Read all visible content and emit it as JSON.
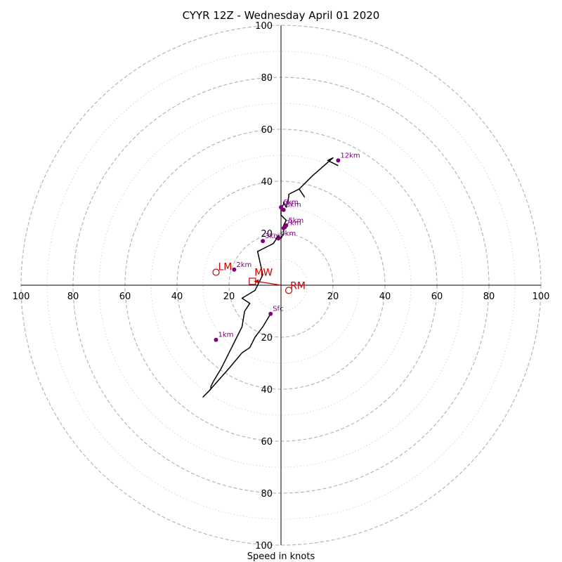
{
  "chart_data": {
    "type": "hodograph",
    "title": "CYYR 12Z - Wednesday April 01 2020",
    "xlabel": "Speed in knots",
    "units": "knots",
    "max_speed": 100,
    "rings": [
      10,
      20,
      30,
      40,
      50,
      60,
      70,
      80,
      90,
      100
    ],
    "major_rings": [
      20,
      40,
      60,
      80,
      100
    ],
    "tick_values": [
      100,
      80,
      60,
      40,
      20
    ],
    "tick_labels": {
      "x_left": [
        "100",
        "80",
        "60",
        "40",
        "20"
      ],
      "x_right": [
        "20",
        "40",
        "60",
        "80",
        "100"
      ],
      "y_top": [
        "100",
        "80",
        "60",
        "40",
        "20"
      ],
      "y_bottom": [
        "20",
        "40",
        "60",
        "80",
        "100"
      ]
    },
    "colors": {
      "trace": "#000000",
      "height_markers": "#800080",
      "storm_motion": "#cc0000",
      "rings_major": "#b0b0b0",
      "rings_minor": "#cfcfcf"
    },
    "trace": {
      "name": "",
      "u": [
        -4,
        -7,
        -10,
        -12,
        -15,
        -20,
        -28,
        -30,
        -28,
        -27,
        -27,
        -26,
        -23,
        -19,
        -17,
        -15,
        -14,
        -12,
        -15,
        -10,
        -7,
        -9,
        -5,
        -3,
        -1,
        -2,
        -1,
        0,
        1,
        1,
        2,
        1,
        2,
        0,
        0,
        0,
        1,
        1,
        2,
        3,
        3,
        7,
        9,
        7,
        12,
        20,
        18,
        22
      ],
      "v": [
        -11,
        -16,
        -20,
        -24,
        -26,
        -32,
        -41,
        -43,
        -41,
        -40,
        -39,
        -37,
        -32,
        -24,
        -20,
        -16,
        -10,
        -7,
        -5,
        -2,
        4,
        13,
        15,
        16,
        19,
        18,
        19,
        18,
        20,
        22,
        22,
        23,
        25,
        27,
        28,
        30,
        31,
        32,
        30,
        34,
        35,
        37,
        34,
        37,
        42,
        49,
        48,
        46
      ]
    },
    "height_markers": [
      {
        "label": "Sfc",
        "u": -4,
        "v": -11
      },
      {
        "label": "1km",
        "u": -25,
        "v": -21
      },
      {
        "label": "2km",
        "u": -18,
        "v": 6
      },
      {
        "label": "3km",
        "u": -7,
        "v": 17
      },
      {
        "label": "4km",
        "u": -1,
        "v": 18
      },
      {
        "label": "5km",
        "u": 2,
        "v": 23
      },
      {
        "label": "6km",
        "u": 0,
        "v": 30
      },
      {
        "label": "7km",
        "u": 1,
        "v": 22
      },
      {
        "label": "8km",
        "u": 1,
        "v": 29
      },
      {
        "label": "12km",
        "u": 22,
        "v": 48
      }
    ],
    "storm_motion": {
      "LM": {
        "label": "LM",
        "u": -25,
        "v": 5
      },
      "MW": {
        "label": "MW",
        "u": -11,
        "v": 1.5
      },
      "RM": {
        "label": "RM",
        "u": 3,
        "v": -2
      }
    }
  }
}
